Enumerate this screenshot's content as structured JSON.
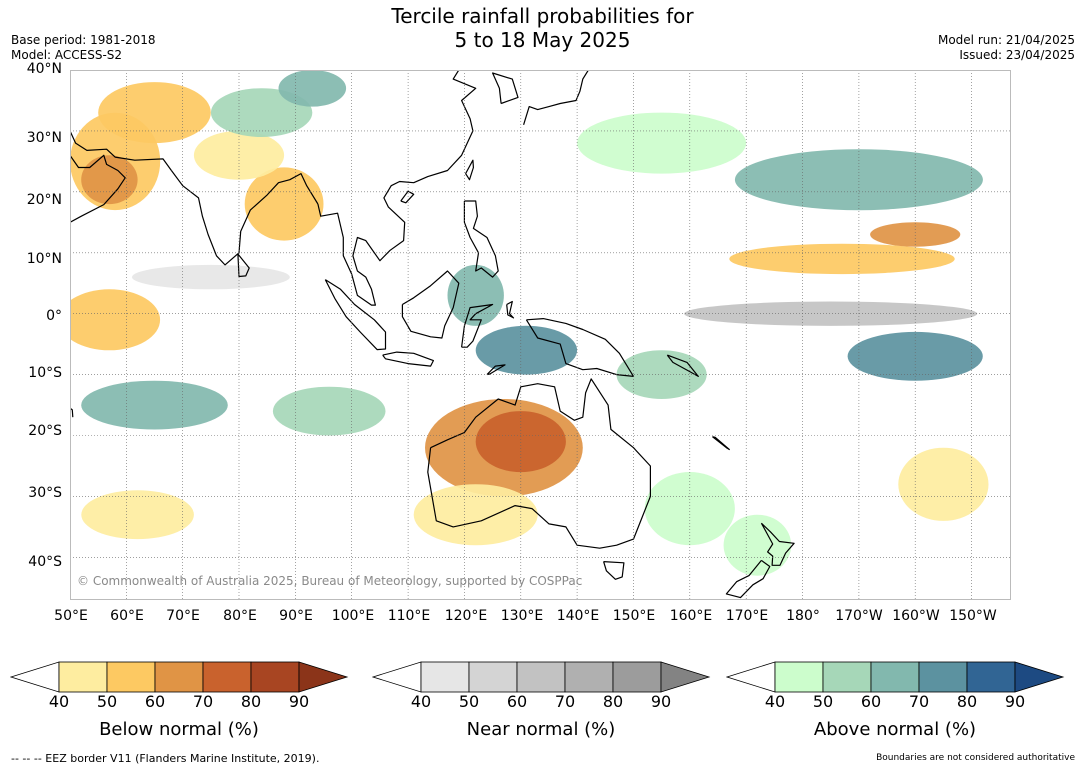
{
  "title_line1": "Tercile rainfall probabilities for",
  "title_line2": "5 to 18 May 2025",
  "base_period": "Base period: 1981-2018",
  "model": "Model: ACCESS-S2",
  "model_run": "Model run: 21/04/2025",
  "issued": "Issued: 23/04/2025",
  "copyright": "© Commonwealth of Australia 2025, Bureau of Meteorology, supported by COSPPac",
  "lat_labels": [
    "40°N",
    "30°N",
    "20°N",
    "10°N",
    "0°",
    "10°S",
    "20°S",
    "30°S",
    "40°S"
  ],
  "lon_labels": [
    "50°E",
    "60°E",
    "70°E",
    "80°E",
    "90°E",
    "100°E",
    "110°E",
    "120°E",
    "130°E",
    "140°E",
    "150°E",
    "160°E",
    "170°E",
    "180°",
    "170°W",
    "160°W",
    "150°W"
  ],
  "colorbars": [
    {
      "title": "Below normal (%)",
      "ticks": [
        "40",
        "50",
        "60",
        "70",
        "80",
        "90"
      ],
      "colors": [
        "#ffffff",
        "#feeda0",
        "#fdc962",
        "#e09445",
        "#c9622d",
        "#a84522",
        "#8b3419"
      ]
    },
    {
      "title": "Near normal (%)",
      "ticks": [
        "40",
        "50",
        "60",
        "70",
        "80",
        "90"
      ],
      "colors": [
        "#ffffff",
        "#e6e6e6",
        "#d4d4d4",
        "#c2c2c2",
        "#b0b0b0",
        "#9c9c9c",
        "#838383"
      ]
    },
    {
      "title": "Above normal (%)",
      "ticks": [
        "40",
        "50",
        "60",
        "70",
        "80",
        "90"
      ],
      "colors": [
        "#ffffff",
        "#ccfdcc",
        "#a6d7b8",
        "#82b8ae",
        "#5c92a0",
        "#316594",
        "#1d4a82"
      ]
    }
  ],
  "footer_left": "--  --  -- EEZ border V11 (Flanders Marine Institute, 2019).",
  "footer_right": "Boundaries are not considered authoritative",
  "map_regions": [
    {
      "name": "west-arabia-below",
      "lon": 58,
      "lat": 25,
      "rx": 8,
      "ry": 8,
      "level": "b60"
    },
    {
      "name": "arabia-below-core",
      "lon": 57,
      "lat": 22,
      "rx": 5,
      "ry": 4,
      "level": "b70"
    },
    {
      "name": "pakistan-below",
      "lon": 65,
      "lat": 33,
      "rx": 10,
      "ry": 5,
      "level": "b60"
    },
    {
      "name": "bay-bengal-below",
      "lon": 88,
      "lat": 18,
      "rx": 7,
      "ry": 6,
      "level": "b60"
    },
    {
      "name": "india-north-below",
      "lon": 80,
      "lat": 26,
      "rx": 8,
      "ry": 4,
      "level": "b50"
    },
    {
      "name": "arabian-sea-below",
      "lon": 57,
      "lat": -1,
      "rx": 9,
      "ry": 5,
      "level": "b60"
    },
    {
      "name": "tibet-above",
      "lon": 84,
      "lat": 33,
      "rx": 9,
      "ry": 4,
      "level": "a60"
    },
    {
      "name": "central-asia-above",
      "lon": 93,
      "lat": 37,
      "rx": 6,
      "ry": 3,
      "level": "a70"
    },
    {
      "name": "indian-ocean-above",
      "lon": 65,
      "lat": -15,
      "rx": 13,
      "ry": 4,
      "level": "a70"
    },
    {
      "name": "indian-ocean-above-east",
      "lon": 96,
      "lat": -16,
      "rx": 10,
      "ry": 4,
      "level": "a60"
    },
    {
      "name": "indonesia-above",
      "lon": 131,
      "lat": -6,
      "rx": 9,
      "ry": 4,
      "level": "a80"
    },
    {
      "name": "borneo-above",
      "lon": 122,
      "lat": 3,
      "rx": 5,
      "ry": 5,
      "level": "a70"
    },
    {
      "name": "pacific-north-above",
      "lon": 190,
      "lat": 22,
      "rx": 22,
      "ry": 5,
      "level": "a70"
    },
    {
      "name": "pacific-south-above",
      "lon": 200,
      "lat": -7,
      "rx": 12,
      "ry": 4,
      "level": "a80"
    },
    {
      "name": "png-above",
      "lon": 155,
      "lat": -10,
      "rx": 8,
      "ry": 4,
      "level": "a60"
    },
    {
      "name": "australia-below",
      "lon": 127,
      "lat": -22,
      "rx": 14,
      "ry": 8,
      "level": "b70"
    },
    {
      "name": "australia-below-core",
      "lon": 130,
      "lat": -21,
      "rx": 8,
      "ry": 5,
      "level": "b80"
    },
    {
      "name": "australia-south-below",
      "lon": 122,
      "lat": -33,
      "rx": 11,
      "ry": 5,
      "level": "b50"
    },
    {
      "name": "pacific-below-band",
      "lon": 187,
      "lat": 9,
      "rx": 20,
      "ry": 2.5,
      "level": "b60"
    },
    {
      "name": "pacific-east-below",
      "lon": 200,
      "lat": 13,
      "rx": 8,
      "ry": 2,
      "level": "b70"
    },
    {
      "name": "pacific-near-band",
      "lon": 185,
      "lat": 0,
      "rx": 26,
      "ry": 2,
      "level": "n60"
    },
    {
      "name": "indian-near-band",
      "lon": 75,
      "lat": 6,
      "rx": 14,
      "ry": 2,
      "level": "n40"
    },
    {
      "name": "southern-below",
      "lon": 62,
      "lat": -33,
      "rx": 10,
      "ry": 4,
      "level": "b50"
    },
    {
      "name": "tasman-above",
      "lon": 160,
      "lat": -32,
      "rx": 8,
      "ry": 6,
      "level": "a50"
    },
    {
      "name": "nz-above",
      "lon": 172,
      "lat": -38,
      "rx": 6,
      "ry": 5,
      "level": "a50"
    },
    {
      "name": "east-pacific-below",
      "lon": 205,
      "lat": -28,
      "rx": 8,
      "ry": 6,
      "level": "b50"
    },
    {
      "name": "pacific-north-above-w",
      "lon": 155,
      "lat": 28,
      "rx": 15,
      "ry": 5,
      "level": "a50"
    }
  ]
}
